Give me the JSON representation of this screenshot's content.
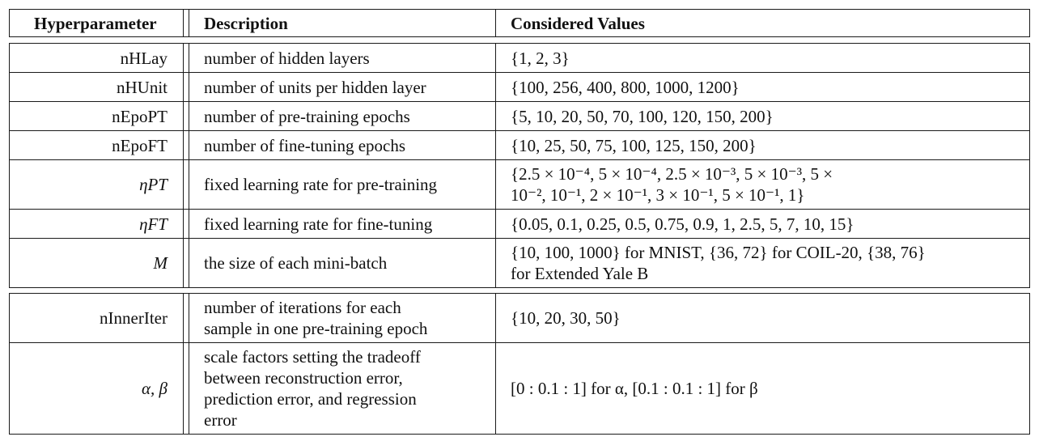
{
  "header": {
    "hyperparameter": "Hyperparameter",
    "description": "Description",
    "values": "Considered Values"
  },
  "rows": [
    {
      "param": "nHLay",
      "desc": [
        "number of hidden layers"
      ],
      "values": [
        "{1, 2, 3}"
      ]
    },
    {
      "param": "nHUnit",
      "desc": [
        "number of units per hidden layer"
      ],
      "values": [
        "{100, 256, 400, 800, 1000, 1200}"
      ]
    },
    {
      "param": "nEpoPT",
      "desc": [
        "number of pre-training epochs"
      ],
      "values": [
        "{5, 10, 20, 50, 70, 100, 120, 150, 200}"
      ]
    },
    {
      "param": "nEpoFT",
      "desc": [
        "number of fine-tuning epochs"
      ],
      "values": [
        "{10, 25, 50, 75, 100, 125, 150, 200}"
      ]
    },
    {
      "param": "ηPT",
      "desc": [
        "fixed learning rate for pre-training"
      ],
      "values": [
        "{2.5 × 10⁻⁴, 5 × 10⁻⁴, 2.5 × 10⁻³, 5 × 10⁻³, 5 ×",
        "10⁻², 10⁻¹, 2 × 10⁻¹, 3 × 10⁻¹, 5 × 10⁻¹, 1}"
      ]
    },
    {
      "param": "ηFT",
      "desc": [
        "fixed learning rate for fine-tuning"
      ],
      "values": [
        "{0.05, 0.1, 0.25, 0.5, 0.75, 0.9, 1, 2.5, 5, 7, 10, 15}"
      ]
    },
    {
      "param": "M",
      "desc": [
        "the size of each mini-batch"
      ],
      "values": [
        "{10, 100, 1000} for MNIST, {36, 72} for COIL-20, {38, 76}",
        "for Extended Yale B"
      ]
    },
    {
      "param": "nInnerIter",
      "desc": [
        "number of iterations for each",
        "sample in one pre-training epoch"
      ],
      "values": [
        "{10, 20, 30, 50}"
      ]
    },
    {
      "param": "α, β",
      "desc": [
        "scale factors setting the tradeoff",
        "between reconstruction error,",
        "prediction error, and regression",
        "error"
      ],
      "values": [
        "[0 : 0.1 : 1] for α, [0.1 : 0.1 : 1] for β"
      ]
    }
  ]
}
